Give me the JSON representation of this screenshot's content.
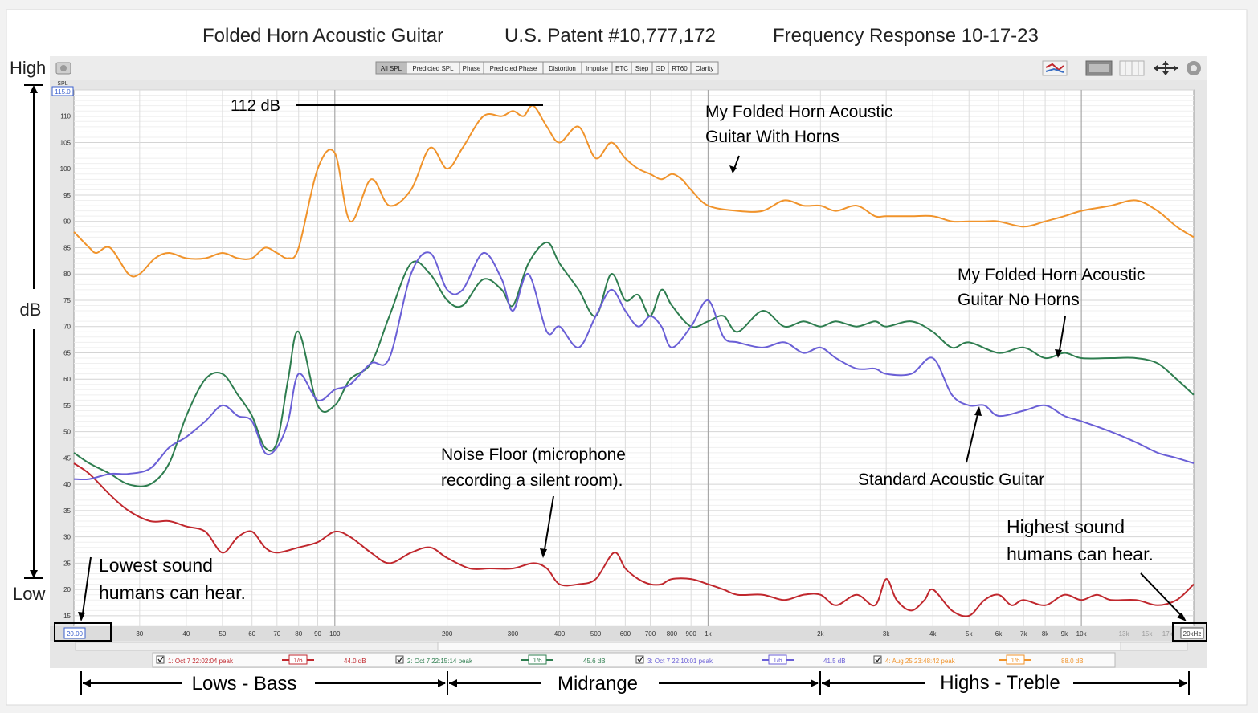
{
  "header": {
    "title": "Folded Horn Acoustic Guitar",
    "patent": "U.S. Patent #10,777,172",
    "subtitle": "Frequency Response 10-17-23"
  },
  "toolbar": {
    "tabs": [
      "All SPL",
      "Predicted SPL",
      "Phase",
      "Predicted Phase",
      "Distortion",
      "Impulse",
      "ETC",
      "Step",
      "GD",
      "RT60",
      "Clarity"
    ],
    "active": "All SPL"
  },
  "axis": {
    "unit_top": "SPL",
    "top_value": "115.0",
    "x_start": "20.00",
    "x_end": "20kHz"
  },
  "side_labels": {
    "high": "High",
    "low": "Low",
    "db": "dB"
  },
  "annotations": {
    "peak": "112 dB",
    "horns_1": "My Folded Horn Acoustic",
    "horns_2": "Guitar With Horns",
    "nohorns_1": "My Folded Horn Acoustic",
    "nohorns_2": "Guitar No Horns",
    "standard": "Standard Acoustic Guitar",
    "noise_1": "Noise Floor (microphone",
    "noise_2": "recording a silent room).",
    "lowest_1": "Lowest sound",
    "lowest_2": "humans can hear.",
    "highest_1": "Highest sound",
    "highest_2": "humans can hear."
  },
  "bands": {
    "lows": "Lows - Bass",
    "mid": "Midrange",
    "highs": "Highs - Treble"
  },
  "legend": [
    {
      "label": "1: Oct 7 22:02:04 peak",
      "smooth": "1/6",
      "value": "44.0 dB",
      "color": "#c0272d"
    },
    {
      "label": "2: Oct 7 22:15:14 peak",
      "smooth": "1/6",
      "value": "45.6 dB",
      "color": "#2e7d4f"
    },
    {
      "label": "3: Oct 7 22:10:01 peak",
      "smooth": "1/6",
      "value": "41.5 dB",
      "color": "#6a5fd6"
    },
    {
      "label": "4: Aug 25 23:48:42 peak",
      "smooth": "1/6",
      "value": "88.0 dB",
      "color": "#f0932b"
    }
  ],
  "chart_data": {
    "type": "line",
    "x_scale": "log",
    "xlim": [
      20,
      20000
    ],
    "ylim": [
      13,
      115
    ],
    "x_ticks": [
      30,
      40,
      50,
      60,
      70,
      80,
      90,
      100,
      200,
      300,
      400,
      500,
      600,
      700,
      800,
      900,
      1000,
      2000,
      3000,
      4000,
      5000,
      6000,
      7000,
      8000,
      9000,
      10000,
      13000,
      15000,
      17000
    ],
    "x_tick_labels": [
      "30",
      "40",
      "50",
      "60",
      "70",
      "80",
      "90",
      "100",
      "200",
      "300",
      "400",
      "500",
      "600",
      "700",
      "800",
      "900",
      "1k",
      "2k",
      "3k",
      "4k",
      "5k",
      "6k",
      "7k",
      "8k",
      "9k",
      "10k",
      "13k",
      "15k",
      "17k"
    ],
    "y_ticks": [
      15,
      20,
      25,
      30,
      35,
      40,
      45,
      50,
      55,
      60,
      65,
      70,
      75,
      80,
      85,
      90,
      95,
      100,
      105,
      110
    ],
    "grid": true,
    "series": [
      {
        "name": "1: Oct 7 22:02:04 peak",
        "color": "#c0272d",
        "x": [
          20,
          22,
          25,
          28,
          32,
          36,
          40,
          45,
          50,
          55,
          60,
          65,
          70,
          80,
          90,
          100,
          110,
          125,
          140,
          160,
          180,
          200,
          230,
          260,
          300,
          340,
          370,
          400,
          450,
          500,
          560,
          600,
          650,
          700,
          750,
          800,
          900,
          1000,
          1100,
          1200,
          1400,
          1600,
          1800,
          2000,
          2200,
          2500,
          2800,
          3000,
          3200,
          3500,
          3800,
          4000,
          4500,
          5000,
          5500,
          6000,
          6500,
          7000,
          8000,
          9000,
          10000,
          11000,
          12000,
          14000,
          16000,
          18000,
          20000
        ],
        "y": [
          44,
          42,
          38,
          35,
          33,
          33,
          32,
          31,
          27,
          30,
          31,
          28,
          27,
          28,
          29,
          31,
          30,
          27,
          25,
          27,
          28,
          26,
          24,
          24,
          24,
          25,
          24,
          21,
          21,
          22,
          27,
          24,
          22,
          21,
          21,
          22,
          22,
          21,
          20,
          19,
          19,
          18,
          19,
          19,
          17,
          19,
          17,
          22,
          18,
          16,
          18,
          20,
          16,
          15,
          18,
          19,
          17,
          18,
          17,
          19,
          18,
          19,
          18,
          18,
          17,
          18,
          21
        ]
      },
      {
        "name": "2: Oct 7 22:15:14 peak",
        "color": "#2e7d4f",
        "x": [
          20,
          22,
          25,
          28,
          32,
          36,
          40,
          45,
          50,
          55,
          60,
          65,
          70,
          75,
          80,
          90,
          100,
          110,
          125,
          140,
          160,
          180,
          200,
          220,
          250,
          280,
          300,
          330,
          370,
          400,
          450,
          500,
          550,
          600,
          650,
          700,
          750,
          800,
          900,
          1000,
          1100,
          1200,
          1400,
          1600,
          1800,
          2000,
          2200,
          2500,
          2800,
          3000,
          3500,
          4000,
          4500,
          5000,
          6000,
          7000,
          8000,
          9000,
          10000,
          12000,
          14000,
          16000,
          18000,
          20000
        ],
        "y": [
          46,
          44,
          42,
          40,
          40,
          44,
          53,
          60,
          61,
          57,
          53,
          47,
          48,
          60,
          69,
          55,
          55,
          60,
          63,
          72,
          82,
          80,
          75,
          74,
          79,
          77,
          74,
          82,
          86,
          82,
          77,
          72,
          80,
          75,
          76,
          72,
          77,
          74,
          70,
          71,
          72,
          69,
          73,
          70,
          71,
          70,
          71,
          70,
          71,
          70,
          71,
          69,
          66,
          67,
          65,
          66,
          64,
          65,
          64,
          64,
          64,
          63,
          60,
          57
        ]
      },
      {
        "name": "3: Oct 7 22:10:01 peak",
        "color": "#6a5fd6",
        "x": [
          20,
          22,
          25,
          28,
          32,
          36,
          40,
          45,
          50,
          55,
          60,
          65,
          70,
          75,
          80,
          90,
          100,
          110,
          125,
          140,
          160,
          180,
          200,
          220,
          250,
          280,
          300,
          330,
          370,
          400,
          450,
          500,
          550,
          600,
          650,
          700,
          750,
          800,
          900,
          1000,
          1100,
          1200,
          1400,
          1600,
          1800,
          2000,
          2200,
          2500,
          2800,
          3000,
          3500,
          4000,
          4500,
          5000,
          5500,
          6000,
          7000,
          8000,
          9000,
          10000,
          12000,
          14000,
          16000,
          18000,
          20000
        ],
        "y": [
          41,
          41,
          42,
          42,
          43,
          47,
          49,
          52,
          55,
          53,
          52,
          46,
          47,
          52,
          61,
          56,
          58,
          59,
          63,
          64,
          80,
          84,
          77,
          77,
          84,
          79,
          73,
          80,
          69,
          70,
          66,
          72,
          77,
          73,
          70,
          72,
          70,
          66,
          70,
          75,
          68,
          67,
          66,
          67,
          65,
          66,
          64,
          62,
          62,
          61,
          61,
          64,
          57,
          55,
          55,
          53,
          54,
          55,
          53,
          52,
          50,
          48,
          46,
          45,
          44
        ]
      },
      {
        "name": "4: Aug 25 23:48:42 peak",
        "color": "#f0932b",
        "x": [
          20,
          22,
          23,
          25,
          28,
          30,
          33,
          36,
          40,
          45,
          50,
          55,
          60,
          65,
          70,
          75,
          80,
          90,
          100,
          110,
          125,
          140,
          160,
          180,
          200,
          220,
          250,
          280,
          300,
          320,
          340,
          370,
          400,
          450,
          500,
          550,
          600,
          650,
          700,
          750,
          800,
          850,
          900,
          1000,
          1200,
          1400,
          1600,
          1800,
          2000,
          2200,
          2500,
          2800,
          3000,
          3500,
          4000,
          4500,
          5000,
          5500,
          6000,
          7000,
          8000,
          9000,
          10000,
          12000,
          14000,
          16000,
          18000,
          20000
        ],
        "y": [
          88,
          85,
          84,
          85,
          80,
          80,
          83,
          84,
          83,
          83,
          84,
          83,
          83,
          85,
          84,
          83,
          85,
          100,
          103,
          90,
          98,
          93,
          96,
          104,
          100,
          104,
          110,
          110,
          111,
          110,
          112,
          108,
          105,
          108,
          102,
          105,
          102,
          100,
          99,
          98,
          99,
          98,
          96,
          93,
          92,
          92,
          94,
          93,
          93,
          92,
          93,
          91,
          91,
          91,
          91,
          90,
          90,
          90,
          90,
          89,
          90,
          91,
          92,
          93,
          94,
          92,
          89,
          87
        ]
      }
    ]
  }
}
